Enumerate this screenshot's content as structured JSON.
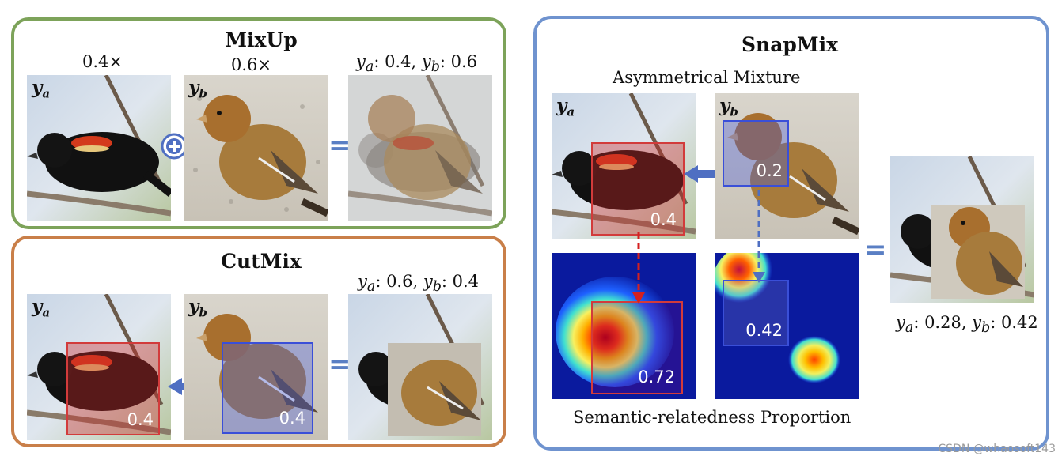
{
  "mixup": {
    "title": "MixUp",
    "coef_a": "0.4×",
    "coef_b": "0.6×",
    "label_a": "y",
    "label_a_sub": "a",
    "label_b": "y",
    "label_b_sub": "b",
    "result_label": "y",
    "result_a_sub": "a",
    "result_a_val": ": 0.4, ",
    "result_b_sub": "b",
    "result_b_val": ": 0.6"
  },
  "cutmix": {
    "title": "CutMix",
    "label_a": "y",
    "label_a_sub": "a",
    "label_b": "y",
    "label_b_sub": "b",
    "box_a_value": "0.4",
    "box_b_value": "0.4",
    "result_label": "y",
    "result_a_sub": "a",
    "result_a_val": ": 0.6, ",
    "result_b_sub": "b",
    "result_b_val": ": 0.4"
  },
  "snapmix": {
    "title": "SnapMix",
    "subtitle": "Asymmetrical Mixture",
    "label_a": "y",
    "label_a_sub": "a",
    "label_b": "y",
    "label_b_sub": "b",
    "box_a_value": "0.4",
    "box_b_value": "0.2",
    "heat_a_value": "0.72",
    "heat_b_value": "0.42",
    "caption": "Semantic-relatedness Proportion",
    "result_label": "y",
    "result_a_sub": "a",
    "result_a_val": ": 0.28, ",
    "result_b_sub": "b",
    "result_b_val": ": 0.42"
  },
  "symbols": {
    "equals": "=",
    "plus_icon": "plus-circle-icon",
    "arrow_icon": "arrow-left-icon"
  },
  "colors": {
    "mixup_border": "#7da35a",
    "cutmix_border": "#c97f49",
    "snapmix_border": "#6f93cf",
    "accent_blue": "#5a7fc4"
  },
  "watermark": "CSDN @whaosoft143"
}
